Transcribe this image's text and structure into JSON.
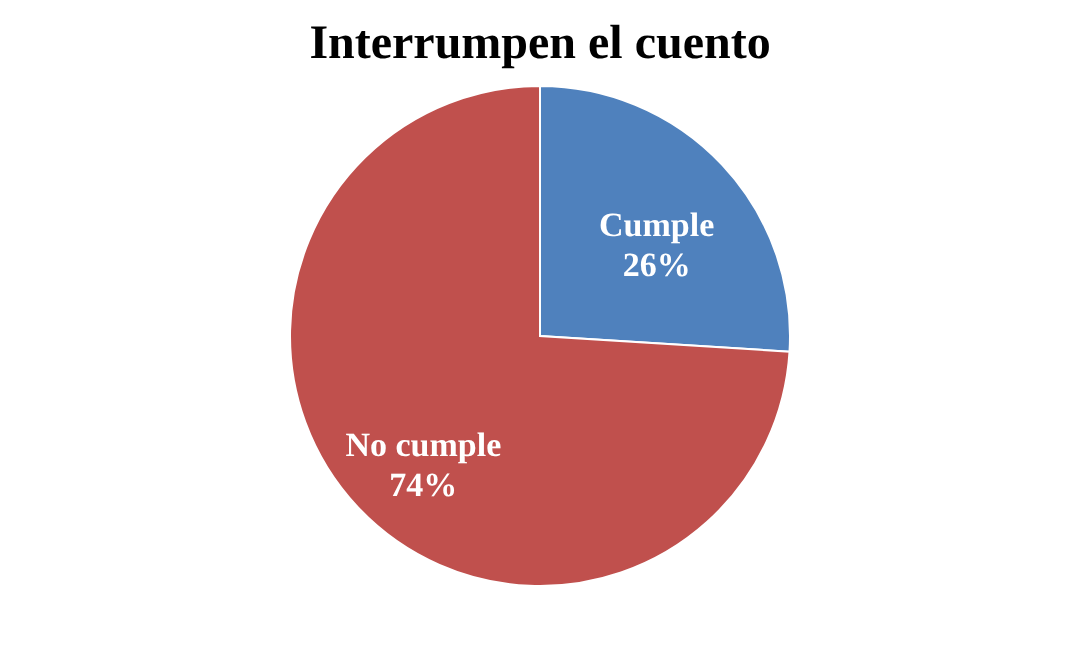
{
  "chart_data": {
    "type": "pie",
    "title": "Interrumpen el cuento",
    "categories": [
      "Cumple",
      "No cumple"
    ],
    "values": [
      26,
      74
    ],
    "colors": [
      "#4f81bd",
      "#c0504d"
    ],
    "value_labels": [
      "26%",
      "74%"
    ],
    "legend": false
  }
}
